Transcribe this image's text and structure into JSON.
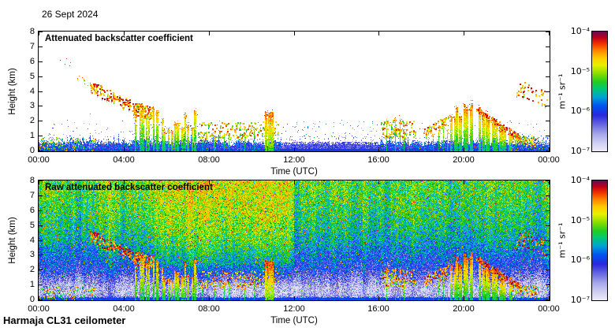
{
  "page": {
    "date_label": "26 Sept 2024",
    "station_label": "Harmaja CL31 ceilometer",
    "background_color": "#ffffff",
    "axis_color": "#000000"
  },
  "colorbar": {
    "tick_labels": [
      "10⁻⁴",
      "10⁻⁵",
      "10⁻⁶",
      "10⁻⁷"
    ],
    "unit_label": "m⁻¹ sr⁻¹"
  },
  "chart_data": {
    "type": "heatmap",
    "panels": [
      {
        "title": "Attenuated backscatter coefficient",
        "kind": "processed"
      },
      {
        "title": "Raw attenuated backscatter coefficient",
        "kind": "raw"
      }
    ],
    "x_axis": {
      "label": "Time (UTC)",
      "tick_labels": [
        "00:00",
        "04:00",
        "08:00",
        "12:00",
        "16:00",
        "20:00",
        "00:00"
      ],
      "range_hours": [
        0,
        24
      ]
    },
    "y_axis": {
      "label": "Height (km)",
      "tick_values": [
        0,
        1,
        2,
        3,
        4,
        5,
        6,
        7,
        8
      ],
      "range_km": [
        0,
        8
      ]
    },
    "value_scale": {
      "type": "log",
      "min": 1e-07,
      "max": 0.0001,
      "unit": "m⁻¹ sr⁻¹"
    },
    "colormap_stops": [
      {
        "t": 0.0,
        "color": "#eaeaf8"
      },
      {
        "t": 0.06,
        "color": "#d2d2f2"
      },
      {
        "t": 0.14,
        "color": "#a8a8ea"
      },
      {
        "t": 0.22,
        "color": "#6868e0"
      },
      {
        "t": 0.3,
        "color": "#2828dd"
      },
      {
        "t": 0.38,
        "color": "#0055f0"
      },
      {
        "t": 0.45,
        "color": "#00a0d8"
      },
      {
        "t": 0.52,
        "color": "#00c878"
      },
      {
        "t": 0.58,
        "color": "#22cc22"
      },
      {
        "t": 0.65,
        "color": "#88dd00"
      },
      {
        "t": 0.72,
        "color": "#e8f000"
      },
      {
        "t": 0.78,
        "color": "#ffcc00"
      },
      {
        "t": 0.84,
        "color": "#ff8800"
      },
      {
        "t": 0.9,
        "color": "#f03300"
      },
      {
        "t": 0.95,
        "color": "#c00018"
      },
      {
        "t": 1.0,
        "color": "#6a0a50"
      }
    ],
    "surface_band": {
      "busy_top_range": [
        0.3,
        0.85
      ],
      "quiet_top_range": [
        0.45,
        0.68
      ],
      "quiet_hours": [
        11.45,
        16.0
      ],
      "spike_prob": 0.05,
      "spike_extra": 0.6,
      "busy_temp": [
        0.2,
        0.45
      ],
      "quiet_temp": [
        0.16,
        0.34
      ],
      "speck_prob": 0.12,
      "speck_temp": [
        0.5,
        0.9
      ]
    },
    "raw_noise": {
      "height_stops": [
        [
          0,
          0.36
        ],
        [
          0.1,
          0.33
        ],
        [
          0.22,
          0.14
        ],
        [
          0.5,
          0.09
        ],
        [
          0.9,
          0.11
        ],
        [
          1.4,
          0.18
        ],
        [
          2.0,
          0.26
        ],
        [
          2.8,
          0.34
        ],
        [
          3.8,
          0.43
        ],
        [
          5.0,
          0.49
        ],
        [
          6.2,
          0.53
        ],
        [
          7.5,
          0.56
        ]
      ],
      "hour_boost": [
        0.03,
        0.03,
        0.04,
        0.05,
        0.06,
        0.09,
        0.13,
        0.16,
        0.17,
        0.17,
        0.17,
        0.17,
        0.04,
        0.03,
        0.03,
        0.02,
        0.03,
        0.03,
        0.03,
        0.03,
        0.04,
        0.04,
        0.04,
        0.03
      ],
      "boost_height_start_km": 0.9,
      "boost_height_full_km": 2.5,
      "pixel_jitter": 0.13,
      "hot_outlier_prob": 0.03,
      "cold_outlier_prob": 0.03
    },
    "events": [
      {
        "name": "early-high-cloud-dots",
        "type": "specks",
        "t": [
          0.7,
          1.5
        ],
        "h": [
          6.4,
          5.9
        ],
        "spread": 0.25,
        "n": 5,
        "temp": [
          0.88,
          1.0
        ],
        "size": 1
      },
      {
        "name": "early-mid-cloud-dots",
        "type": "specks",
        "t": [
          1.8,
          2.45
        ],
        "h": [
          5.0,
          4.4
        ],
        "spread": 0.2,
        "n": 8,
        "temp": [
          0.8,
          0.93
        ],
        "size": 1
      },
      {
        "name": "descending-cloud-band",
        "type": "specks",
        "t": [
          2.4,
          4.7
        ],
        "h": [
          4.35,
          2.7
        ],
        "spread": 0.4,
        "n": 120,
        "temp": [
          0.72,
          0.97
        ],
        "size": 2
      },
      {
        "name": "morning-cloud-cluster",
        "type": "specks",
        "t": [
          4.4,
          5.35
        ],
        "h": [
          2.9,
          2.5
        ],
        "spread": 0.45,
        "n": 80,
        "temp": [
          0.74,
          0.95
        ],
        "size": 2
      },
      {
        "name": "morning-precip-1",
        "type": "columns",
        "t": [
          4.45,
          5.3
        ],
        "n": 5,
        "top": [
          2.4,
          2.9
        ],
        "jitter": 0.5,
        "coreTemp": [
          0.5,
          0.78
        ],
        "capTemp": [
          0.8,
          0.94
        ],
        "width": 2
      },
      {
        "name": "morning-precip-2",
        "type": "columns",
        "t": [
          5.35,
          7.4
        ],
        "n": 13,
        "top": [
          2.0,
          2.2
        ],
        "jitter": 0.8,
        "coreTemp": [
          0.5,
          0.8
        ],
        "capTemp": [
          0.78,
          0.93
        ],
        "width": 2
      },
      {
        "name": "midmorning-cumulus-specks",
        "type": "specks",
        "t": [
          7.5,
          11.3
        ],
        "h": [
          1.35,
          1.5
        ],
        "spread": 0.55,
        "n": 140,
        "temp": [
          0.55,
          0.92
        ],
        "size": 2
      },
      {
        "name": "midmorning-shallow-columns",
        "type": "columns",
        "t": [
          7.6,
          10.4
        ],
        "n": 7,
        "top": [
          1.1,
          1.3
        ],
        "jitter": 0.45,
        "coreTemp": [
          0.45,
          0.65
        ],
        "capTemp": [
          0.7,
          0.86
        ],
        "width": 1
      },
      {
        "name": "late-morning-deep-column",
        "type": "columns",
        "t": [
          10.55,
          11.0
        ],
        "n": 3,
        "top": [
          2.4,
          2.6
        ],
        "jitter": 0.25,
        "coreTemp": [
          0.6,
          0.85
        ],
        "capTemp": [
          0.85,
          0.95
        ],
        "width": 3
      },
      {
        "name": "afternoon-sparse-dots",
        "type": "specks",
        "t": [
          11.9,
          15.9
        ],
        "h": [
          1.3,
          1.4
        ],
        "spread": 0.7,
        "n": 26,
        "temp": [
          0.48,
          0.62
        ],
        "size": 1
      },
      {
        "name": "late-afternoon-clusters",
        "type": "specks",
        "t": [
          16.1,
          17.7
        ],
        "h": [
          1.5,
          1.5
        ],
        "spread": 0.6,
        "n": 95,
        "temp": [
          0.55,
          0.92
        ],
        "size": 2
      },
      {
        "name": "late-afternoon-columns",
        "type": "columns",
        "t": [
          16.3,
          17.4
        ],
        "n": 4,
        "top": [
          1.6,
          1.8
        ],
        "jitter": 0.5,
        "coreTemp": [
          0.5,
          0.72
        ],
        "capTemp": [
          0.8,
          0.9
        ],
        "width": 1
      },
      {
        "name": "evening-cloud-arc",
        "type": "specks",
        "t": [
          18.15,
          19.25
        ],
        "h": [
          1.3,
          2.1
        ],
        "spread": 0.3,
        "n": 60,
        "temp": [
          0.7,
          0.93
        ],
        "size": 2
      },
      {
        "name": "evening-virga-columns",
        "type": "columns",
        "t": [
          18.5,
          19.25
        ],
        "n": 4,
        "top": [
          1.3,
          1.6
        ],
        "jitter": 0.35,
        "coreTemp": [
          0.48,
          0.68
        ],
        "capTemp": [
          0.75,
          0.88
        ],
        "width": 1
      },
      {
        "name": "evening-precip-1",
        "type": "columns",
        "t": [
          19.3,
          20.45
        ],
        "n": 8,
        "top": [
          2.4,
          2.9
        ],
        "jitter": 0.4,
        "coreTemp": [
          0.5,
          0.84
        ],
        "capTemp": [
          0.82,
          0.95
        ],
        "width": 3
      },
      {
        "name": "evening-precip-2",
        "type": "columns",
        "t": [
          20.6,
          22.3
        ],
        "n": 11,
        "top": [
          2.7,
          1.3
        ],
        "jitter": 0.35,
        "coreTemp": [
          0.5,
          0.85
        ],
        "capTemp": [
          0.82,
          0.96
        ],
        "width": 3
      },
      {
        "name": "evening-cloud-base-line",
        "type": "specks",
        "t": [
          20.6,
          22.6
        ],
        "h": [
          2.75,
          0.95
        ],
        "spread": 0.15,
        "n": 100,
        "temp": [
          0.8,
          0.97
        ],
        "size": 2
      },
      {
        "name": "night-low-cloud-specks",
        "type": "specks",
        "t": [
          22.25,
          23.4
        ],
        "h": [
          0.85,
          0.6
        ],
        "spread": 0.3,
        "n": 70,
        "temp": [
          0.6,
          0.9
        ],
        "size": 2
      },
      {
        "name": "night-high-cloud-dots",
        "type": "specks",
        "t": [
          22.4,
          23.9
        ],
        "h": [
          4.3,
          3.5
        ],
        "spread": 0.55,
        "n": 45,
        "temp": [
          0.75,
          0.95
        ],
        "size": 2
      },
      {
        "name": "early-surface-specks",
        "type": "specks",
        "t": [
          0.0,
          2.6
        ],
        "h": [
          0.45,
          0.45
        ],
        "spread": 0.45,
        "n": 200,
        "temp": [
          0.45,
          0.9
        ],
        "size": 1
      },
      {
        "name": "late-surface-specks",
        "type": "specks",
        "t": [
          22.2,
          24.0
        ],
        "h": [
          0.5,
          0.5
        ],
        "spread": 0.5,
        "n": 110,
        "temp": [
          0.35,
          0.85
        ],
        "size": 1
      }
    ]
  }
}
